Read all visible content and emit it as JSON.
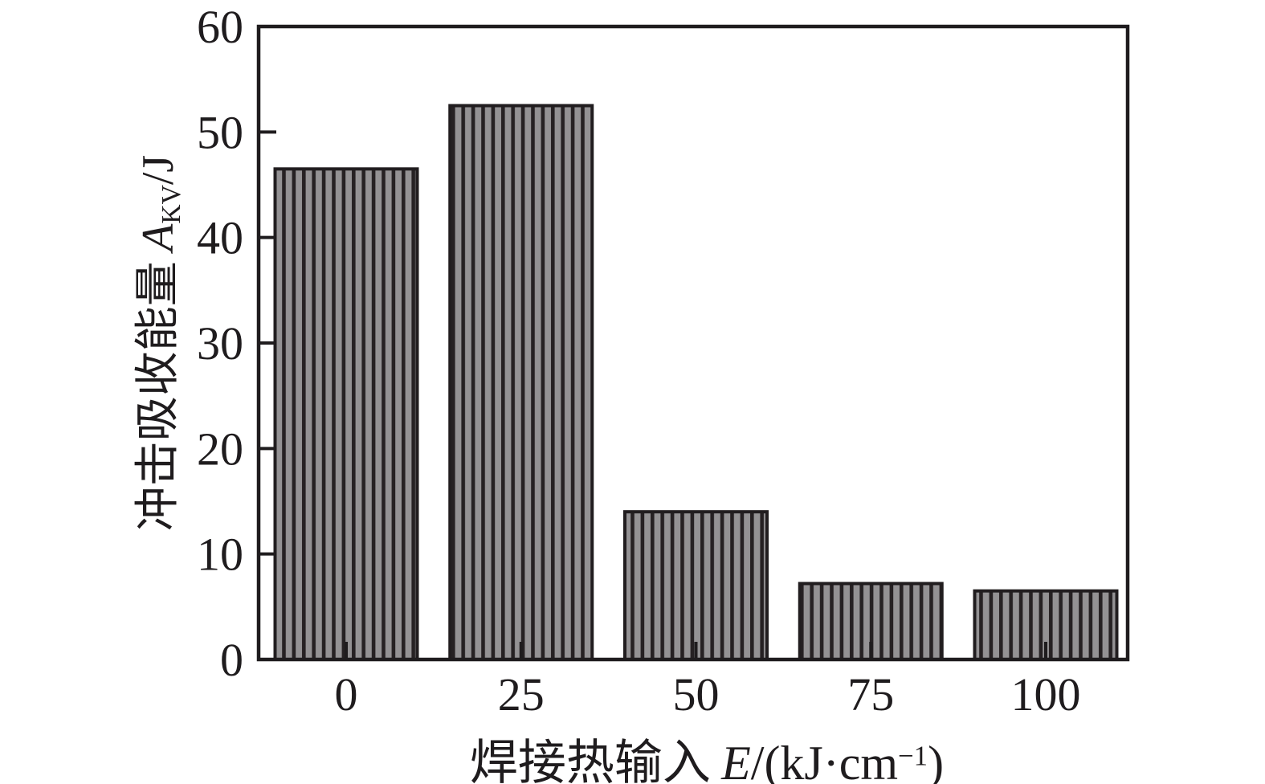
{
  "chart_data": {
    "type": "bar",
    "title": "",
    "categories": [
      "0",
      "25",
      "50",
      "75",
      "100"
    ],
    "values": [
      46.5,
      52.5,
      14,
      7.2,
      6.5
    ],
    "xlabel": "焊接热输入 E/(kJ·cm⁻¹)",
    "ylabel": "冲击吸收能量 A_KV/J",
    "xlabel_parts": {
      "cn": "焊接热输入",
      "var": "E",
      "unit_pre": "/(kJ·cm",
      "unit_sup": "−1",
      "unit_post": ")"
    },
    "ylabel_parts": {
      "cn": "冲击吸收能量",
      "var": "A",
      "sub": "KV",
      "unit": "/J"
    },
    "ylim": [
      0,
      60
    ],
    "yticks": [
      0,
      10,
      20,
      30,
      40,
      50,
      60
    ],
    "grid": false,
    "legend": null,
    "bar_hatch": "vertical-lines",
    "colors": {
      "bar_fill": "#949294",
      "hatch_line": "#262123",
      "bar_outline": "#211d1f",
      "axis": "#1f1c1e",
      "text": "#1f1c1e",
      "background": "#ffffff"
    }
  }
}
